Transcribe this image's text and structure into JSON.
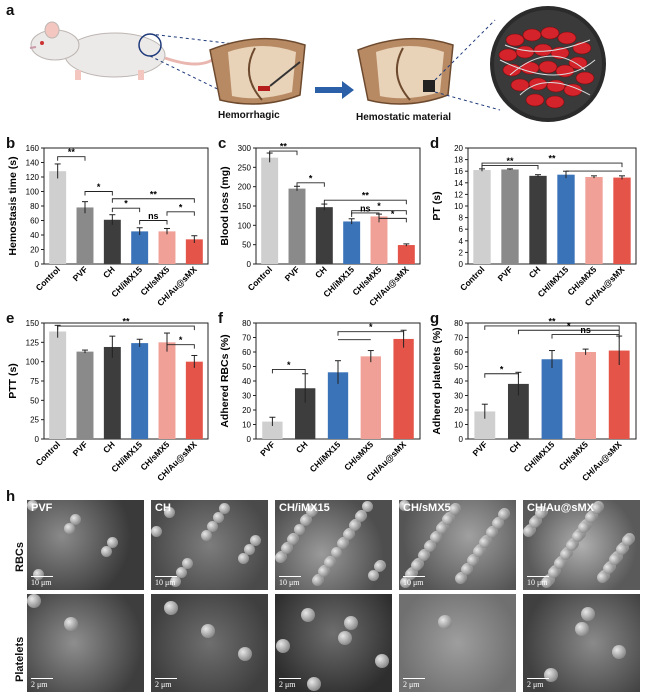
{
  "panels": {
    "a": {
      "label": "a",
      "hemorrhagic": "Hemorrhagic",
      "hemostatic": "Hemostatic material"
    },
    "b": {
      "label": "b"
    },
    "c": {
      "label": "c"
    },
    "d": {
      "label": "d"
    },
    "e": {
      "label": "e"
    },
    "f": {
      "label": "f"
    },
    "g": {
      "label": "g"
    },
    "h": {
      "label": "h",
      "row1": "RBCs",
      "row2": "Platelets",
      "scale": "10 μm",
      "scale2": "2 μm",
      "tiles": [
        "PVF",
        "CH",
        "CH/iMX15",
        "CH/sMX5",
        "CH/Au@sMX"
      ]
    }
  },
  "colors": {
    "light": "#cfcfcf",
    "gray": "#8a8a8a",
    "dark": "#3d3d3d",
    "blue": "#3a73b8",
    "pink": "#f0a096",
    "red": "#e55449"
  },
  "chart_data": [
    {
      "id": "b",
      "type": "bar",
      "ylabel": "Hemostasis time (s)",
      "ylim": [
        0,
        160
      ],
      "yticks": [
        0,
        20,
        40,
        60,
        80,
        100,
        120,
        140,
        160
      ],
      "categories": [
        "Control",
        "PVF",
        "CH",
        "CH/iMX15",
        "CH/sMX5",
        "CH/Au@sMX"
      ],
      "values": [
        128,
        78,
        61,
        45,
        45,
        34
      ],
      "errors": [
        10,
        8,
        7,
        5,
        4,
        5
      ],
      "colors": [
        "light",
        "gray",
        "dark",
        "blue",
        "pink",
        "red"
      ],
      "annotations": [
        "**",
        "*",
        "*",
        "ns",
        "**",
        "*"
      ]
    },
    {
      "id": "c",
      "type": "bar",
      "ylabel": "Blood loss (mg)",
      "ylim": [
        0,
        300
      ],
      "yticks": [
        0,
        50,
        100,
        150,
        200,
        250,
        300
      ],
      "categories": [
        "Control",
        "PVF",
        "CH",
        "CH/iMX15",
        "CH/sMX5",
        "CH/Au@sMX"
      ],
      "values": [
        275,
        195,
        147,
        110,
        123,
        49
      ],
      "errors": [
        12,
        6,
        8,
        7,
        6,
        3
      ],
      "colors": [
        "light",
        "gray",
        "dark",
        "blue",
        "pink",
        "red"
      ],
      "annotations": [
        "**",
        "*",
        "**",
        "*",
        "ns",
        "*"
      ]
    },
    {
      "id": "d",
      "type": "bar",
      "ylabel": "PT (s)",
      "ylim": [
        0,
        20
      ],
      "yticks": [
        0,
        2,
        4,
        6,
        8,
        10,
        12,
        14,
        16,
        18,
        20
      ],
      "categories": [
        "Control",
        "PVF",
        "CH",
        "CH/iMX15",
        "CH/sMX5",
        "CH/Au@sMX"
      ],
      "values": [
        16.2,
        16.3,
        15.2,
        15.4,
        15.0,
        14.9
      ],
      "errors": [
        0.2,
        0.1,
        0.2,
        0.6,
        0.2,
        0.3
      ],
      "colors": [
        "light",
        "gray",
        "dark",
        "blue",
        "pink",
        "red"
      ],
      "annotations": [
        "**",
        "**"
      ]
    },
    {
      "id": "e",
      "type": "bar",
      "ylabel": "PTT (s)",
      "ylim": [
        0,
        150
      ],
      "yticks": [
        0,
        25,
        50,
        75,
        100,
        125,
        150
      ],
      "categories": [
        "Control",
        "PVF",
        "CH",
        "CH/iMX15",
        "CH/sMX5",
        "CH/Au@sMX"
      ],
      "values": [
        139,
        113,
        119,
        124,
        125,
        100
      ],
      "errors": [
        8,
        2,
        14,
        5,
        12,
        8
      ],
      "colors": [
        "light",
        "gray",
        "dark",
        "blue",
        "pink",
        "red"
      ],
      "annotations": [
        "**",
        "*"
      ]
    },
    {
      "id": "f",
      "type": "bar",
      "ylabel": "Adhered RBCs (%)",
      "ylim": [
        0,
        80
      ],
      "yticks": [
        0,
        10,
        20,
        30,
        40,
        50,
        60,
        70,
        80
      ],
      "categories": [
        "PVF",
        "CH",
        "CH/iMX15",
        "CH/sMX5",
        "CH/Au@sMX"
      ],
      "values": [
        12,
        35,
        46,
        57,
        69
      ],
      "errors": [
        3,
        10,
        8,
        4,
        6
      ],
      "colors": [
        "light",
        "dark",
        "blue",
        "pink",
        "red"
      ],
      "annotations": [
        "*",
        "*"
      ]
    },
    {
      "id": "g",
      "type": "bar",
      "ylabel": "Adhered platelets (%)",
      "ylim": [
        0,
        80
      ],
      "yticks": [
        0,
        10,
        20,
        30,
        40,
        50,
        60,
        70,
        80
      ],
      "categories": [
        "PVF",
        "CH",
        "CH/iMX15",
        "CH/sMX5",
        "CH/Au@sMX"
      ],
      "values": [
        19,
        38,
        55,
        60,
        61
      ],
      "errors": [
        5,
        8,
        6,
        2,
        10
      ],
      "colors": [
        "light",
        "dark",
        "blue",
        "pink",
        "red"
      ],
      "annotations": [
        "*",
        "**",
        "*",
        "ns"
      ]
    }
  ]
}
